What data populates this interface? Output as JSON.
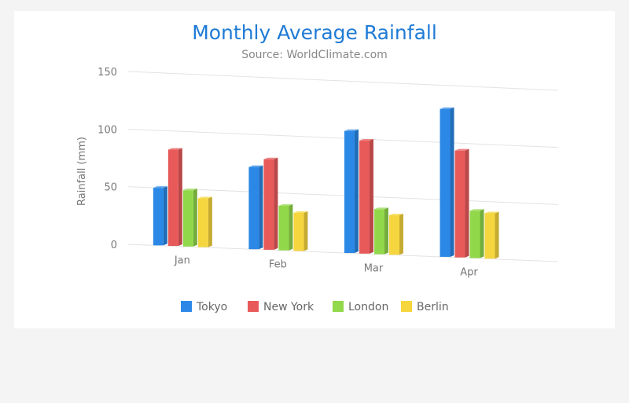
{
  "chart_data": {
    "type": "bar",
    "title": "Monthly Average Rainfall",
    "subtitle": "Source: WorldClimate.com",
    "ylabel": "Rainfall (mm)",
    "xlabel": "",
    "ylim": [
      0,
      150
    ],
    "yticks": [
      0,
      50,
      100,
      150
    ],
    "categories": [
      "Jan",
      "Feb",
      "Mar",
      "Apr"
    ],
    "series": [
      {
        "name": "Tokyo",
        "values": [
          49.9,
          71.5,
          106.4,
          129.2
        ],
        "color": "#2b88e6"
      },
      {
        "name": "New York",
        "values": [
          83.6,
          78.8,
          98.5,
          93.4
        ],
        "color": "#e85a5a"
      },
      {
        "name": "London",
        "values": [
          48.9,
          38.8,
          39.3,
          41.4
        ],
        "color": "#92d84b"
      },
      {
        "name": "Berlin",
        "values": [
          42.4,
          33.2,
          34.5,
          39.7
        ],
        "color": "#f6d63e"
      }
    ],
    "grid": true,
    "legend": "bottom",
    "three_d": true
  }
}
